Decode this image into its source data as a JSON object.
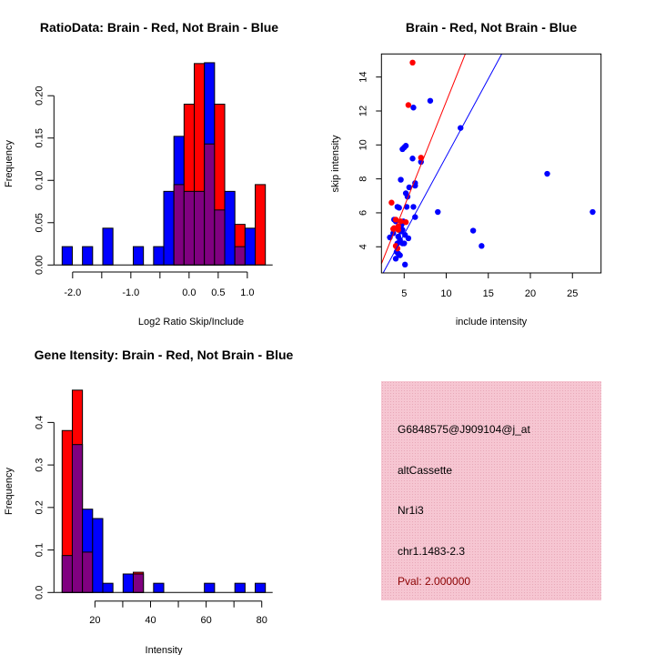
{
  "colors": {
    "red": "#ff0000",
    "blue": "#0000ff",
    "purple": "#800080",
    "panel": "#f4bccb",
    "pval": "#8b0000"
  },
  "chart_data": [
    {
      "type": "bar",
      "subtype": "overlaid-histogram",
      "title": "RatioData: Brain - Red, Not Brain - Blue",
      "xlabel": "Log2 Ratio Skip/Include",
      "ylabel": "Frequency",
      "bin_start": -2.18,
      "bin_width": 0.1745,
      "xlim": [
        -2.18,
        1.31
      ],
      "ylim": [
        0,
        0.24
      ],
      "xticks": [
        -2.0,
        -1.5,
        -1.0,
        -0.5,
        0.0,
        0.5,
        1.0
      ],
      "xtick_labels": [
        "-2.0",
        "",
        "-1.0",
        "",
        "0.0",
        "0.5",
        "1.0"
      ],
      "yticks": [
        0,
        0.05,
        0.1,
        0.15,
        0.2
      ],
      "ytick_labels": [
        "0.00",
        "0.05",
        "0.10",
        "0.15",
        "0.20"
      ],
      "series": [
        {
          "name": "Not Brain",
          "color": "blue",
          "values": [
            0.0217,
            0,
            0.0217,
            0,
            0.0435,
            0,
            0,
            0.0217,
            0,
            0.0217,
            0.087,
            0.152,
            0.087,
            0.087,
            0.239,
            0.065,
            0.087,
            0.0217,
            0.0435,
            0
          ]
        },
        {
          "name": "Brain",
          "color": "red",
          "values": [
            0,
            0,
            0,
            0,
            0,
            0,
            0,
            0,
            0,
            0,
            0,
            0.095,
            0.19,
            0.238,
            0.143,
            0.19,
            0,
            0.048,
            0,
            0.095
          ]
        }
      ]
    },
    {
      "type": "scatter",
      "title": "Brain - Red, Not Brain - Blue",
      "xlabel": "include intensity",
      "ylabel": "skip intensity",
      "xlim": [
        2.3,
        28.4
      ],
      "ylim": [
        2.46,
        15.36
      ],
      "xticks": [
        5,
        10,
        15,
        20,
        25
      ],
      "xtick_labels": [
        "5",
        "10",
        "15",
        "20",
        "25"
      ],
      "yticks": [
        4,
        6,
        8,
        10,
        12,
        14
      ],
      "ytick_labels": [
        "4",
        "6",
        "8",
        "10",
        "12",
        "14"
      ],
      "series": [
        {
          "name": "Not Brain",
          "color": "blue",
          "fit": {
            "slope": 0.915,
            "intercept": 0.17
          },
          "points": [
            [
              8.1,
              12.6
            ],
            [
              6.1,
              12.2
            ],
            [
              11.7,
              11.0
            ],
            [
              5.2,
              9.95
            ],
            [
              4.8,
              9.75
            ],
            [
              5.0,
              9.85
            ],
            [
              6.0,
              9.2
            ],
            [
              7.0,
              9.0
            ],
            [
              4.6,
              7.95
            ],
            [
              22.0,
              8.3
            ],
            [
              6.3,
              7.75
            ],
            [
              6.3,
              7.6
            ],
            [
              5.6,
              7.5
            ],
            [
              5.2,
              7.15
            ],
            [
              5.4,
              6.95
            ],
            [
              4.2,
              6.35
            ],
            [
              4.4,
              6.3
            ],
            [
              5.3,
              6.35
            ],
            [
              6.1,
              6.35
            ],
            [
              9.0,
              6.05
            ],
            [
              27.4,
              6.05
            ],
            [
              6.3,
              5.75
            ],
            [
              3.8,
              5.6
            ],
            [
              4.0,
              5.5
            ],
            [
              13.2,
              4.95
            ],
            [
              4.7,
              5.3
            ],
            [
              4.8,
              5.0
            ],
            [
              4.3,
              4.6
            ],
            [
              3.3,
              4.55
            ],
            [
              5.1,
              4.7
            ],
            [
              5.5,
              4.5
            ],
            [
              4.5,
              4.4
            ],
            [
              4.2,
              4.2
            ],
            [
              4.8,
              4.2
            ],
            [
              5.0,
              4.2
            ],
            [
              14.2,
              4.05
            ],
            [
              4.1,
              3.7
            ],
            [
              4.3,
              3.6
            ],
            [
              4.5,
              3.5
            ],
            [
              4.0,
              3.3
            ],
            [
              5.1,
              2.95
            ],
            [
              3.7,
              4.8
            ],
            [
              4.6,
              4.9
            ],
            [
              4.9,
              5.5
            ]
          ]
        },
        {
          "name": "Brain",
          "color": "red",
          "fit": {
            "slope": 1.24,
            "intercept": 0.15
          },
          "points": [
            [
              6.0,
              14.85
            ],
            [
              5.5,
              12.35
            ],
            [
              7.0,
              9.25
            ],
            [
              3.5,
              6.6
            ],
            [
              3.8,
              5.1
            ],
            [
              4.0,
              5.6
            ],
            [
              4.3,
              5.2
            ],
            [
              5.2,
              5.45
            ],
            [
              4.0,
              4.05
            ],
            [
              4.3,
              5.0
            ],
            [
              3.7,
              5.05
            ],
            [
              4.6,
              5.5
            ],
            [
              4.2,
              3.9
            ]
          ]
        }
      ]
    },
    {
      "type": "bar",
      "subtype": "overlaid-histogram",
      "title": "Gene Itensity: Brain - Red, Not Brain - Blue",
      "xlabel": "Intensity",
      "ylabel": "Frequency",
      "bin_start": 8.2,
      "bin_width": 3.655,
      "xlim": [
        8.2,
        81.3
      ],
      "ylim": [
        0,
        0.48
      ],
      "xticks": [
        20,
        30,
        40,
        50,
        60,
        70,
        80
      ],
      "xtick_labels": [
        "20",
        "",
        "40",
        "",
        "60",
        "",
        "80"
      ],
      "yticks": [
        0,
        0.1,
        0.2,
        0.3,
        0.4
      ],
      "ytick_labels": [
        "0.0",
        "0.1",
        "0.2",
        "0.3",
        "0.4"
      ],
      "series": [
        {
          "name": "Not Brain",
          "color": "blue",
          "values": [
            0.087,
            0.348,
            0.196,
            0.174,
            0.0217,
            0,
            0.0435,
            0.0435,
            0,
            0.0217,
            0,
            0,
            0,
            0,
            0.0217,
            0,
            0,
            0.0217,
            0,
            0.0217
          ]
        },
        {
          "name": "Brain",
          "color": "red",
          "values": [
            0.381,
            0.476,
            0.095,
            0,
            0,
            0,
            0,
            0.0476,
            0,
            0,
            0,
            0,
            0,
            0,
            0,
            0,
            0,
            0,
            0,
            0
          ]
        }
      ]
    }
  ],
  "info_panel": {
    "probe_id": "G6848575@J909104@j_at",
    "event_type": "altCassette",
    "gene": "Nr1i3",
    "location": "chr1.1483-2.3",
    "pval": "Pval: 2.000000"
  }
}
